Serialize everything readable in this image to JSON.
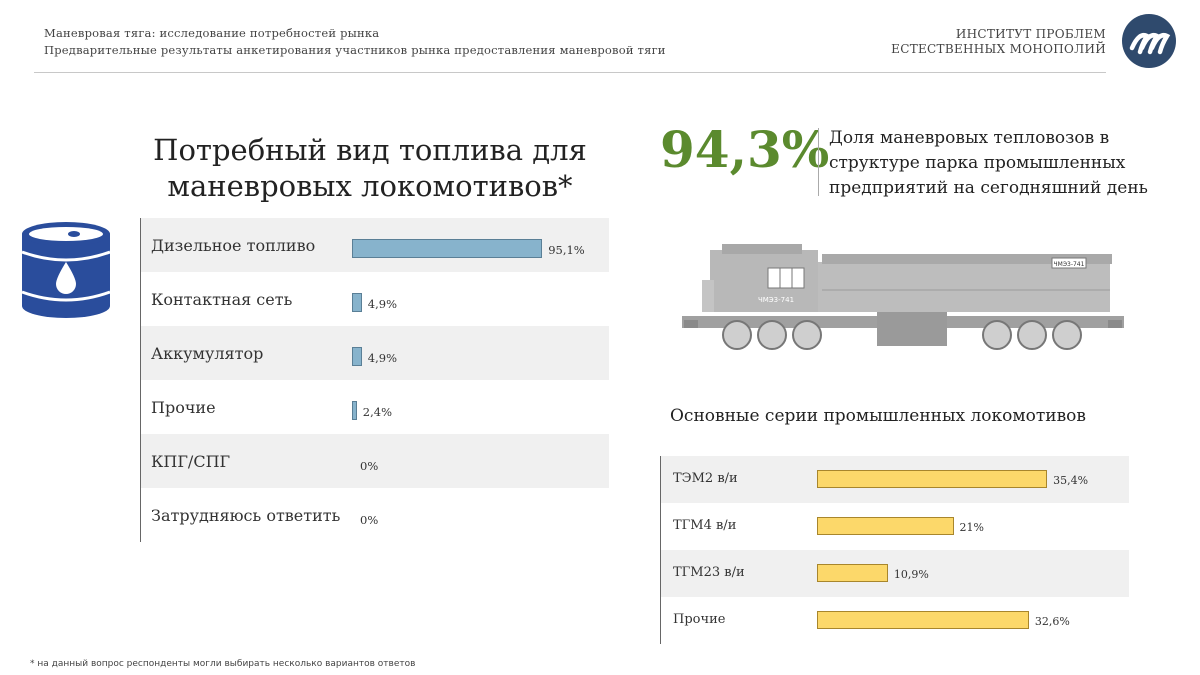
{
  "header": {
    "line1": "Маневровая тяга: исследование потребностей рынка",
    "line2": "Предварительные результаты анкетирования участников рынка предоставления маневровой тяги",
    "institute_line1": "ИНСТИТУТ ПРОБЛЕМ",
    "institute_line2": "ЕСТЕСТВЕННЫХ МОНОПОЛИЙ",
    "logo_icon": "ipem-logo-icon"
  },
  "left_chart_title": "Потребный вид топлива для маневровых локомотивов*",
  "stat": {
    "value": "94,3%",
    "description": "Доля маневровых тепловозов в структуре парка промышленных предприятий на сегодняшний день"
  },
  "locomotive": {
    "number": "ЧМЭ3-741",
    "icon": "locomotive-illustration"
  },
  "right_chart_title": "Основные серии промышленных локомотивов",
  "footnote": "* на данный вопрос респонденты могли выбирать несколько вариантов ответов",
  "colors": {
    "fuel_bar": "#87b3cc",
    "loco_bar": "#fcd86a",
    "accent_green": "#5b8a2e",
    "barrel": "#2a4d9c"
  },
  "chart_data": [
    {
      "type": "bar",
      "orientation": "horizontal",
      "categories": [
        "Дизельное топливо",
        "Контактная сеть",
        "Аккумулятор",
        "Прочие",
        "КПГ/СПГ",
        "Затрудняюсь ответить"
      ],
      "values": [
        95.1,
        4.9,
        4.9,
        2.4,
        0,
        0
      ],
      "labels": [
        "95,1%",
        "4,9%",
        "4,9%",
        "2,4%",
        "0%",
        "0%"
      ],
      "xlim": [
        0,
        100
      ]
    },
    {
      "type": "bar",
      "orientation": "horizontal",
      "categories": [
        "ТЭМ2 в/и",
        "ТГМ4 в/и",
        "ТГМ23 в/и",
        "Прочие"
      ],
      "values": [
        35.4,
        21,
        10.9,
        32.6
      ],
      "labels": [
        "35,4%",
        "21%",
        "10,9%",
        "32,6%"
      ],
      "xlim": [
        0,
        40
      ]
    }
  ]
}
